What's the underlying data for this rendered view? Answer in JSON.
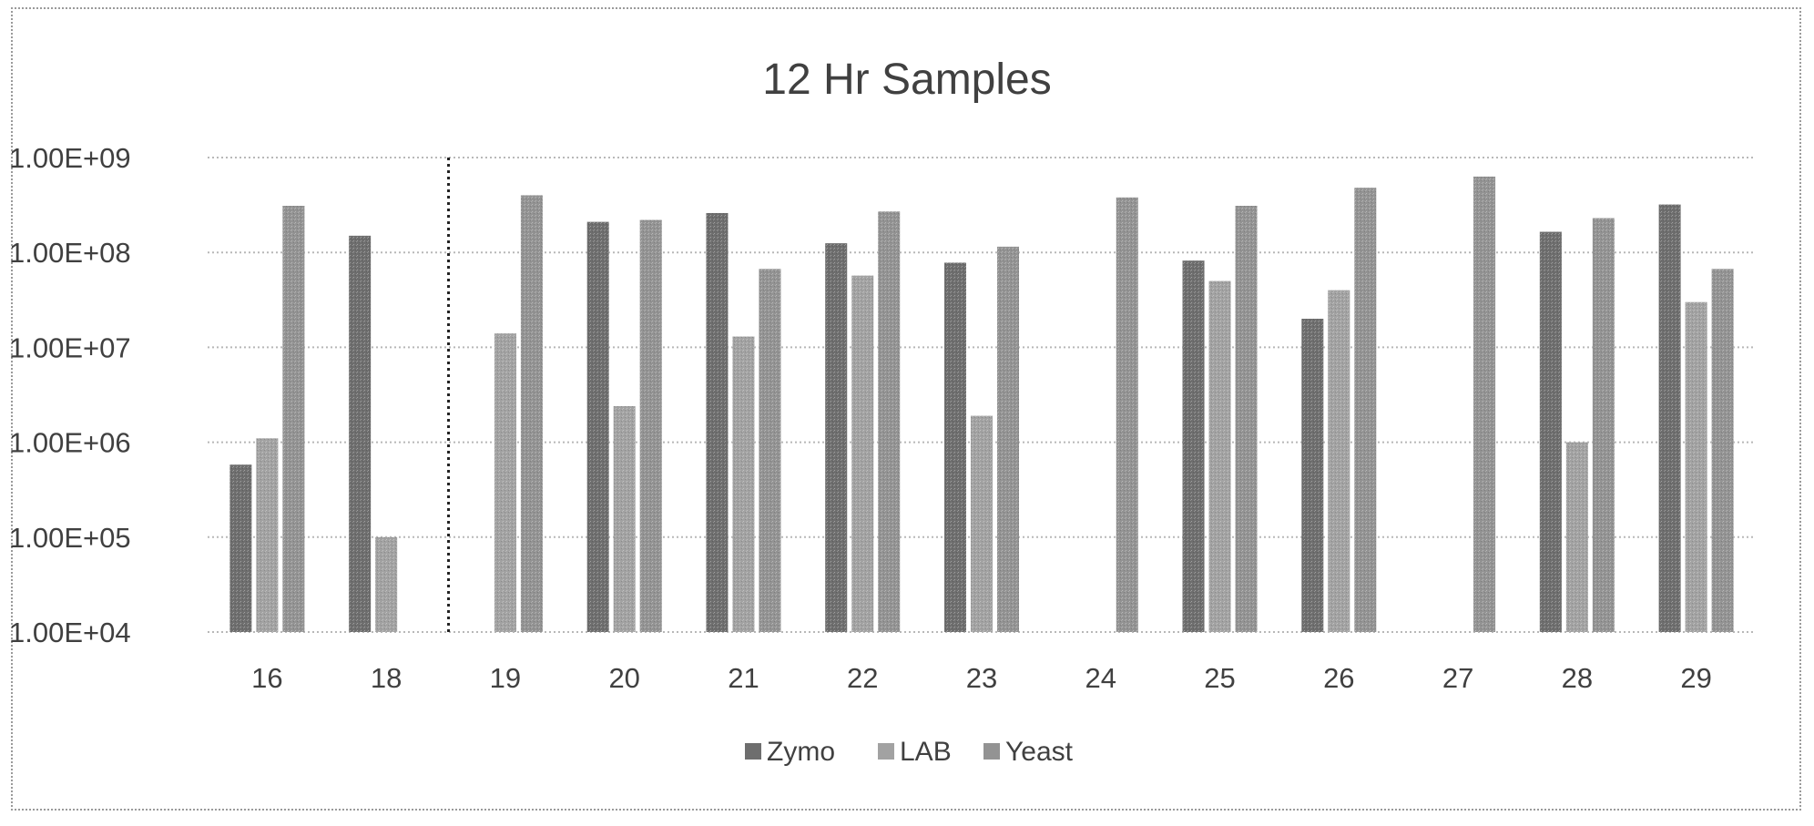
{
  "chart_data": {
    "type": "bar",
    "title": "12 Hr Samples",
    "xlabel": "",
    "ylabel": "",
    "yscale": "log",
    "ylim": [
      10000,
      1000000000
    ],
    "yticks": [
      "1.00E+04",
      "1.00E+05",
      "1.00E+06",
      "1.00E+07",
      "1.00E+08",
      "1.00E+09"
    ],
    "grid": true,
    "legend_position": "bottom",
    "categories": [
      "16",
      "18",
      "19",
      "20",
      "21",
      "22",
      "23",
      "24",
      "25",
      "26",
      "27",
      "28",
      "29"
    ],
    "divider_after_category": "18",
    "series": [
      {
        "name": "Zymo",
        "color": "#6e6e6e",
        "values": [
          580000,
          150000000,
          null,
          210000000,
          260000000,
          125000000,
          78000000,
          null,
          82000000,
          20000000,
          null,
          165000000,
          320000000
        ]
      },
      {
        "name": "LAB",
        "color": "#a2a2a2",
        "values": [
          1100000,
          100000,
          14000000,
          2400000,
          13000000,
          57000000,
          1900000,
          null,
          50000000,
          40000000,
          null,
          1000000,
          30000000
        ]
      },
      {
        "name": "Yeast",
        "color": "#939393",
        "values": [
          310000000,
          null,
          400000000,
          220000000,
          67000000,
          270000000,
          115000000,
          380000000,
          310000000,
          480000000,
          630000000,
          230000000,
          67000000
        ]
      }
    ]
  }
}
